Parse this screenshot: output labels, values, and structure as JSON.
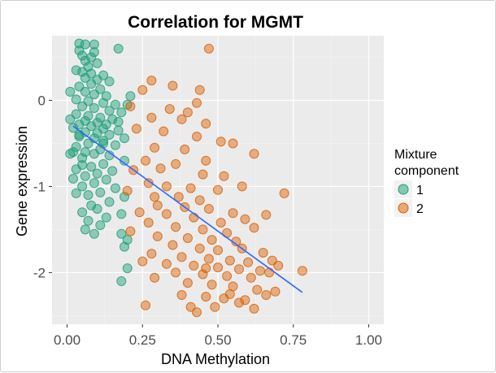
{
  "chart_data": {
    "type": "scatter",
    "title": "Correlation for MGMT",
    "xlabel": "DNA Methylation",
    "ylabel": "Gene expression",
    "xlim": [
      -0.05,
      1.05
    ],
    "ylim": [
      -2.6,
      0.75
    ],
    "xticks": [
      0.0,
      0.25,
      0.5,
      0.75,
      1.0
    ],
    "xtick_labels": [
      "0.00",
      "0.25",
      "0.50",
      "0.75",
      "1.00"
    ],
    "yticks": [
      0,
      -1,
      -2
    ],
    "ytick_labels": [
      "0",
      "-1",
      "-2"
    ],
    "grid": true,
    "legend": {
      "title_line1": "Mixture",
      "title_line2": "component",
      "placement": "right",
      "items": [
        {
          "label": "1",
          "color": "#1b9e77"
        },
        {
          "label": "2",
          "color": "#d95f02"
        }
      ]
    },
    "series": [
      {
        "label": "1",
        "color": "#1b9e77",
        "points": [
          [
            0.04,
            0.66
          ],
          [
            0.06,
            0.65
          ],
          [
            0.09,
            0.65
          ],
          [
            0.17,
            0.6
          ],
          [
            0.04,
            0.58
          ],
          [
            0.09,
            0.56
          ],
          [
            0.05,
            0.52
          ],
          [
            0.08,
            0.5
          ],
          [
            0.06,
            0.46
          ],
          [
            0.1,
            0.43
          ],
          [
            0.07,
            0.39
          ],
          [
            0.03,
            0.35
          ],
          [
            0.05,
            0.33
          ],
          [
            0.08,
            0.31
          ],
          [
            0.12,
            0.29
          ],
          [
            0.06,
            0.26
          ],
          [
            0.1,
            0.24
          ],
          [
            0.14,
            0.22
          ],
          [
            0.08,
            0.19
          ],
          [
            0.04,
            0.16
          ],
          [
            0.11,
            0.13
          ],
          [
            0.06,
            0.1
          ],
          [
            0.01,
            0.1
          ],
          [
            0.09,
            0.07
          ],
          [
            0.13,
            0.05
          ],
          [
            0.21,
            0.05
          ],
          [
            0.03,
            0.01
          ],
          [
            0.07,
            -0.01
          ],
          [
            0.12,
            -0.03
          ],
          [
            0.16,
            -0.05
          ],
          [
            0.2,
            -0.05
          ],
          [
            0.05,
            -0.07
          ],
          [
            0.09,
            -0.09
          ],
          [
            0.14,
            -0.12
          ],
          [
            0.18,
            -0.14
          ],
          [
            0.03,
            -0.16
          ],
          [
            0.07,
            -0.18
          ],
          [
            0.11,
            -0.2
          ],
          [
            0.15,
            -0.22
          ],
          [
            0.01,
            -0.22
          ],
          [
            0.06,
            -0.24
          ],
          [
            0.1,
            -0.26
          ],
          [
            0.04,
            -0.28
          ],
          [
            0.13,
            -0.28
          ],
          [
            0.08,
            -0.3
          ],
          [
            0.02,
            -0.32
          ],
          [
            0.12,
            -0.33
          ],
          [
            0.17,
            -0.35
          ],
          [
            0.06,
            -0.37
          ],
          [
            0.1,
            -0.38
          ],
          [
            0.14,
            -0.4
          ],
          [
            0.04,
            -0.42
          ],
          [
            0.09,
            -0.44
          ],
          [
            0.19,
            -0.44
          ],
          [
            0.12,
            -0.47
          ],
          [
            0.07,
            -0.5
          ],
          [
            0.16,
            -0.52
          ],
          [
            0.03,
            -0.54
          ],
          [
            0.11,
            -0.57
          ],
          [
            0.06,
            -0.6
          ],
          [
            0.09,
            -0.62
          ],
          [
            0.01,
            -0.62
          ],
          [
            0.14,
            -0.64
          ],
          [
            0.05,
            -0.67
          ],
          [
            0.19,
            -0.7
          ],
          [
            0.12,
            -0.74
          ],
          [
            0.08,
            -0.77
          ],
          [
            0.03,
            -0.8
          ],
          [
            0.15,
            -0.82
          ],
          [
            0.1,
            -0.85
          ],
          [
            0.06,
            -0.88
          ],
          [
            0.02,
            -0.91
          ],
          [
            0.13,
            -0.92
          ],
          [
            0.09,
            -0.96
          ],
          [
            0.05,
            -1.0
          ],
          [
            0.16,
            -1.02
          ],
          [
            0.11,
            -1.07
          ],
          [
            0.07,
            -1.1
          ],
          [
            0.19,
            -1.12
          ],
          [
            0.03,
            -1.08
          ],
          [
            0.14,
            -1.18
          ],
          [
            0.08,
            -1.22
          ],
          [
            0.1,
            -1.26
          ],
          [
            0.05,
            -1.3
          ],
          [
            0.18,
            -1.32
          ],
          [
            0.13,
            -1.36
          ],
          [
            0.07,
            -1.4
          ],
          [
            0.11,
            -1.45
          ],
          [
            0.06,
            -1.5
          ],
          [
            0.18,
            -1.55
          ],
          [
            0.2,
            -1.62
          ],
          [
            0.19,
            -1.7
          ],
          [
            0.2,
            -1.95
          ],
          [
            0.18,
            -2.1
          ],
          [
            0.09,
            -1.55
          ],
          [
            0.02,
            -0.6
          ],
          [
            0.12,
            -0.5
          ],
          [
            0.05,
            -0.75
          ],
          [
            0.17,
            -0.25
          ],
          [
            0.04,
            -0.4
          ]
        ]
      },
      {
        "label": "2",
        "color": "#d95f02",
        "points": [
          [
            0.47,
            0.6
          ],
          [
            0.28,
            0.23
          ],
          [
            0.35,
            0.17
          ],
          [
            0.25,
            0.12
          ],
          [
            0.44,
            0.12
          ],
          [
            0.21,
            -0.07
          ],
          [
            0.43,
            -0.03
          ],
          [
            0.34,
            -0.1
          ],
          [
            0.4,
            -0.14
          ],
          [
            0.28,
            -0.2
          ],
          [
            0.38,
            -0.22
          ],
          [
            0.46,
            -0.27
          ],
          [
            0.23,
            -0.33
          ],
          [
            0.32,
            -0.36
          ],
          [
            0.43,
            -0.42
          ],
          [
            0.55,
            -0.5
          ],
          [
            0.51,
            -0.48
          ],
          [
            0.29,
            -0.55
          ],
          [
            0.39,
            -0.57
          ],
          [
            0.26,
            -0.7
          ],
          [
            0.36,
            -0.74
          ],
          [
            0.46,
            -0.7
          ],
          [
            0.62,
            -0.62
          ],
          [
            0.22,
            -0.81
          ],
          [
            0.31,
            -0.79
          ],
          [
            0.45,
            -0.86
          ],
          [
            0.52,
            -0.88
          ],
          [
            0.27,
            -0.96
          ],
          [
            0.33,
            -1.0
          ],
          [
            0.41,
            -1.02
          ],
          [
            0.5,
            -1.04
          ],
          [
            0.58,
            -1.0
          ],
          [
            0.2,
            -1.05
          ],
          [
            0.29,
            -1.12
          ],
          [
            0.37,
            -1.12
          ],
          [
            0.44,
            -1.16
          ],
          [
            0.3,
            -1.22
          ],
          [
            0.39,
            -1.24
          ],
          [
            0.47,
            -1.26
          ],
          [
            0.55,
            -1.31
          ],
          [
            0.72,
            -1.08
          ],
          [
            0.24,
            -1.3
          ],
          [
            0.33,
            -1.32
          ],
          [
            0.42,
            -1.36
          ],
          [
            0.51,
            -1.42
          ],
          [
            0.59,
            -1.38
          ],
          [
            0.66,
            -1.33
          ],
          [
            0.27,
            -1.42
          ],
          [
            0.36,
            -1.47
          ],
          [
            0.45,
            -1.5
          ],
          [
            0.53,
            -1.54
          ],
          [
            0.62,
            -1.48
          ],
          [
            0.21,
            -1.52
          ],
          [
            0.3,
            -1.58
          ],
          [
            0.4,
            -1.6
          ],
          [
            0.48,
            -1.62
          ],
          [
            0.56,
            -1.64
          ],
          [
            0.35,
            -1.68
          ],
          [
            0.44,
            -1.72
          ],
          [
            0.5,
            -1.74
          ],
          [
            0.58,
            -1.72
          ],
          [
            0.65,
            -1.77
          ],
          [
            0.28,
            -1.78
          ],
          [
            0.38,
            -1.82
          ],
          [
            0.47,
            -1.84
          ],
          [
            0.54,
            -1.86
          ],
          [
            0.6,
            -1.88
          ],
          [
            0.68,
            -1.86
          ],
          [
            0.25,
            -1.87
          ],
          [
            0.33,
            -1.9
          ],
          [
            0.42,
            -1.92
          ],
          [
            0.5,
            -1.94
          ],
          [
            0.57,
            -1.96
          ],
          [
            0.64,
            -1.98
          ],
          [
            0.7,
            -1.92
          ],
          [
            0.36,
            -2.0
          ],
          [
            0.45,
            -2.02
          ],
          [
            0.53,
            -2.04
          ],
          [
            0.61,
            -2.06
          ],
          [
            0.67,
            -2.0
          ],
          [
            0.78,
            -1.98
          ],
          [
            0.29,
            -2.06
          ],
          [
            0.4,
            -2.12
          ],
          [
            0.48,
            -2.14
          ],
          [
            0.55,
            -2.16
          ],
          [
            0.63,
            -2.2
          ],
          [
            0.69,
            -2.22
          ],
          [
            0.38,
            -2.26
          ],
          [
            0.46,
            -2.28
          ],
          [
            0.52,
            -2.3
          ],
          [
            0.59,
            -2.32
          ],
          [
            0.66,
            -2.26
          ],
          [
            0.26,
            -2.38
          ],
          [
            0.41,
            -2.4
          ],
          [
            0.49,
            -2.4
          ],
          [
            0.57,
            -2.35
          ],
          [
            0.62,
            -2.42
          ],
          [
            0.43,
            -2.46
          ],
          [
            0.54,
            -2.25
          ],
          [
            0.46,
            -1.95
          ]
        ]
      }
    ],
    "fit_line": {
      "color": "#3366ff",
      "x": [
        0.02,
        0.78
      ],
      "y": [
        -0.3,
        -2.23
      ]
    }
  }
}
